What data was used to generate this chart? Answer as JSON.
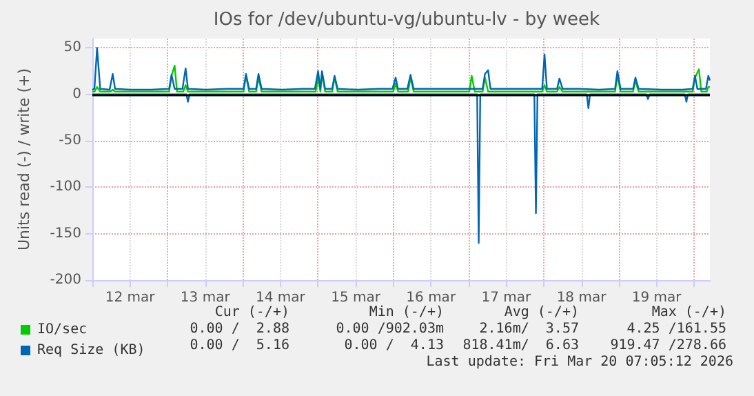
{
  "chart_data": {
    "type": "line",
    "title": "IOs for /dev/ubuntu-vg/ubuntu-lv - by week",
    "ylabel": "Units read (-) / write (+)",
    "xlim": [
      "2026-03-12T00:00",
      "2026-03-20T05:00"
    ],
    "xticks": [
      {
        "value": "2026-03-12T00:00",
        "label": null
      },
      {
        "value": "2026-03-12T12:00",
        "label": "12 mar"
      },
      {
        "value": "2026-03-13T00:00",
        "label": null
      },
      {
        "value": "2026-03-13T12:00",
        "label": "13 mar"
      },
      {
        "value": "2026-03-14T00:00",
        "label": null
      },
      {
        "value": "2026-03-14T12:00",
        "label": "14 mar"
      },
      {
        "value": "2026-03-15T00:00",
        "label": null
      },
      {
        "value": "2026-03-15T12:00",
        "label": "15 mar"
      },
      {
        "value": "2026-03-16T00:00",
        "label": null
      },
      {
        "value": "2026-03-16T12:00",
        "label": "16 mar"
      },
      {
        "value": "2026-03-17T00:00",
        "label": null
      },
      {
        "value": "2026-03-17T12:00",
        "label": "17 mar"
      },
      {
        "value": "2026-03-18T00:00",
        "label": null
      },
      {
        "value": "2026-03-18T12:00",
        "label": "18 mar"
      },
      {
        "value": "2026-03-19T00:00",
        "label": null
      },
      {
        "value": "2026-03-19T12:00",
        "label": "19 mar"
      },
      {
        "value": "2026-03-20T00:00",
        "label": null
      }
    ],
    "ylim": [
      -200,
      60
    ],
    "yticks": [
      -200,
      -150,
      -100,
      -50,
      0,
      50
    ],
    "grid": true,
    "legend": "bottom left",
    "marker": "none",
    "line_style": "solid",
    "ref_lines": [
      {
        "axis": "y",
        "value": 0,
        "color": "#000000"
      }
    ],
    "series": [
      {
        "name": "IO/sec",
        "color": "#00cc00",
        "x": [
          "2026-03-12T00:00",
          "2026-03-12T00:45",
          "2026-03-12T01:30",
          "2026-03-12T02:30",
          "2026-03-12T05:45",
          "2026-03-12T06:30",
          "2026-03-12T07:15",
          "2026-03-13T00:30",
          "2026-03-13T01:15",
          "2026-03-13T02:15",
          "2026-03-13T03:00",
          "2026-03-13T05:00",
          "2026-03-13T05:45",
          "2026-03-13T06:30",
          "2026-03-14T00:15",
          "2026-03-14T01:00",
          "2026-03-14T02:00",
          "2026-03-14T04:15",
          "2026-03-14T05:00",
          "2026-03-14T06:00",
          "2026-03-14T23:15",
          "2026-03-15T00:00",
          "2026-03-15T00:45",
          "2026-03-15T01:15",
          "2026-03-15T02:15",
          "2026-03-15T04:30",
          "2026-03-15T05:15",
          "2026-03-15T06:15",
          "2026-03-16T00:00",
          "2026-03-16T00:45",
          "2026-03-16T01:30",
          "2026-03-16T04:45",
          "2026-03-16T05:30",
          "2026-03-16T06:30",
          "2026-03-17T00:15",
          "2026-03-17T01:00",
          "2026-03-17T02:00",
          "2026-03-17T04:30",
          "2026-03-17T05:15",
          "2026-03-17T06:15",
          "2026-03-17T23:30",
          "2026-03-18T00:15",
          "2026-03-18T01:00",
          "2026-03-18T04:15",
          "2026-03-18T05:00",
          "2026-03-18T06:00",
          "2026-03-18T22:45",
          "2026-03-18T23:30",
          "2026-03-19T00:30",
          "2026-03-19T04:30",
          "2026-03-19T05:15",
          "2026-03-19T06:15",
          "2026-03-19T23:30",
          "2026-03-20T00:15",
          "2026-03-20T01:30",
          "2026-03-20T02:15",
          "2026-03-20T04:00",
          "2026-03-20T04:30",
          "2026-03-20T05:00"
        ],
        "values": [
          3,
          3,
          8,
          3,
          3,
          5,
          3,
          3,
          20,
          31,
          3,
          3,
          10,
          3,
          3,
          20,
          3,
          3,
          18,
          3,
          3,
          18,
          3,
          22,
          3,
          3,
          18,
          3,
          3,
          12,
          3,
          3,
          18,
          3,
          3,
          20,
          3,
          3,
          18,
          3,
          3,
          10,
          3,
          3,
          8,
          3,
          3,
          20,
          3,
          3,
          15,
          3,
          3,
          18,
          27,
          3,
          3,
          8,
          8
        ]
      },
      {
        "name": "Req Size (KB)",
        "color": "#0066b3",
        "x": [
          "2026-03-12T00:00",
          "2026-03-12T00:40",
          "2026-03-12T01:30",
          "2026-03-12T02:30",
          "2026-03-12T05:30",
          "2026-03-12T06:30",
          "2026-03-12T07:15",
          "2026-03-12T12:00",
          "2026-03-12T18:45",
          "2026-03-13T00:30",
          "2026-03-13T01:15",
          "2026-03-13T02:15",
          "2026-03-13T04:45",
          "2026-03-13T05:45",
          "2026-03-13T06:30",
          "2026-03-13T12:15",
          "2026-03-13T19:00",
          "2026-03-14T00:15",
          "2026-03-14T01:00",
          "2026-03-14T02:00",
          "2026-03-14T04:15",
          "2026-03-14T05:00",
          "2026-03-14T06:00",
          "2026-03-14T12:30",
          "2026-03-14T19:15",
          "2026-03-14T23:00",
          "2026-03-15T00:00",
          "2026-03-15T00:45",
          "2026-03-15T01:15",
          "2026-03-15T02:15",
          "2026-03-15T04:30",
          "2026-03-15T05:15",
          "2026-03-15T06:15",
          "2026-03-15T12:45",
          "2026-03-15T19:30",
          "2026-03-15T23:45",
          "2026-03-16T00:45",
          "2026-03-16T01:30",
          "2026-03-16T04:30",
          "2026-03-16T05:30",
          "2026-03-16T06:30",
          "2026-03-16T13:00",
          "2026-03-16T19:30",
          "2026-03-17T02:15",
          "2026-03-17T04:30",
          "2026-03-17T05:15",
          "2026-03-17T06:15",
          "2026-03-17T07:00",
          "2026-03-17T13:15",
          "2026-03-17T19:45",
          "2026-03-17T23:30",
          "2026-03-18T00:15",
          "2026-03-18T01:00",
          "2026-03-18T04:15",
          "2026-03-18T05:00",
          "2026-03-18T06:00",
          "2026-03-18T11:15",
          "2026-03-18T17:45",
          "2026-03-18T22:45",
          "2026-03-18T23:30",
          "2026-03-19T00:30",
          "2026-03-19T04:30",
          "2026-03-19T05:15",
          "2026-03-19T06:15",
          "2026-03-19T13:45",
          "2026-03-19T20:15",
          "2026-03-19T23:30",
          "2026-03-20T00:15",
          "2026-03-20T01:00",
          "2026-03-20T03:45",
          "2026-03-20T04:30",
          "2026-03-20T05:00"
        ],
        "values": [
          5,
          6,
          50,
          6,
          5,
          22,
          6,
          5,
          5,
          6,
          21,
          6,
          6,
          28,
          6,
          5,
          6,
          6,
          22,
          6,
          6,
          22,
          6,
          5,
          6,
          6,
          25,
          6,
          25,
          6,
          6,
          20,
          6,
          5,
          6,
          6,
          18,
          6,
          6,
          21,
          6,
          6,
          6,
          6,
          6,
          22,
          26,
          6,
          6,
          6,
          6,
          43,
          6,
          6,
          17,
          6,
          6,
          5,
          6,
          25,
          6,
          6,
          18,
          6,
          5,
          5,
          6,
          20,
          6,
          6,
          20,
          15
        ]
      },
      {
        "color": "#0066b3",
        "x": [
          "2026-03-12T00:00",
          "2026-03-13T06:00",
          "2026-03-13T06:30",
          "2026-03-13T07:00",
          "2026-03-17T02:45",
          "2026-03-17T03:15",
          "2026-03-17T03:45",
          "2026-03-17T21:00",
          "2026-03-17T21:30",
          "2026-03-17T22:00",
          "2026-03-18T13:45",
          "2026-03-18T14:15",
          "2026-03-18T14:45",
          "2026-03-19T08:45",
          "2026-03-19T09:15",
          "2026-03-19T09:45",
          "2026-03-19T21:00",
          "2026-03-19T21:30",
          "2026-03-19T22:00",
          "2026-03-20T05:00"
        ],
        "values": [
          0,
          0,
          -8,
          0,
          0,
          -160,
          0,
          0,
          -128,
          0,
          0,
          -15,
          0,
          0,
          -5,
          0,
          0,
          -8,
          0,
          0
        ]
      }
    ],
    "annotations": [
      "Cur (-/+)",
      "Min (-/+)",
      "Avg (-/+)",
      "Max (-/+)",
      "0.00 /  2.88",
      "0.00 /902.03m",
      "2.16m/  3.57",
      "4.25 /161.55",
      "0.00 /  5.16",
      "0.00 /  4.13",
      "818.41m/  6.63",
      "919.47 /278.66",
      "Last update: Fri Mar 20 07:05:12 2026"
    ]
  }
}
